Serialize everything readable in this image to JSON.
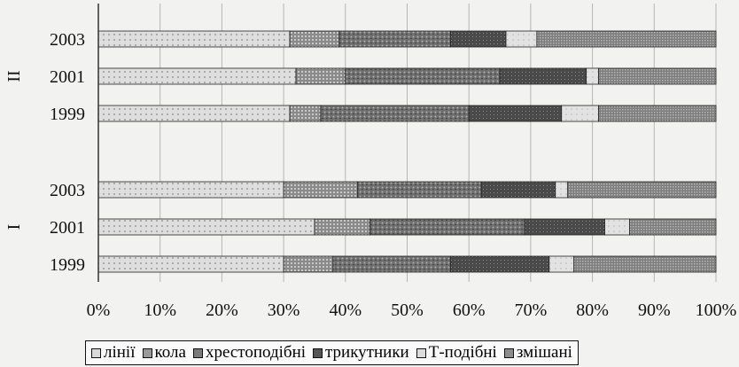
{
  "chart_data": {
    "type": "bar",
    "orientation": "horizontal",
    "stacked": "percent",
    "groups": [
      {
        "label": "II",
        "categories": [
          "2003",
          "2001",
          "1999"
        ]
      },
      {
        "label": "I",
        "categories": [
          "2003",
          "2001",
          "1999"
        ]
      }
    ],
    "categories": [
      "2003",
      "2001",
      "1999",
      "2003",
      "2001",
      "1999"
    ],
    "series": [
      {
        "name": "лінії",
        "values": [
          31,
          32,
          31,
          30,
          35,
          30
        ],
        "color": "#d9d9d9"
      },
      {
        "name": "кола",
        "values": [
          8,
          8,
          5,
          12,
          9,
          8
        ],
        "color": "#9a9a9a"
      },
      {
        "name": "хрестоподібні",
        "values": [
          18,
          25,
          24,
          20,
          25,
          19
        ],
        "color": "#7a7a7a"
      },
      {
        "name": "трикутники",
        "values": [
          9,
          14,
          15,
          12,
          13,
          16
        ],
        "color": "#555555"
      },
      {
        "name": "Т-подібні",
        "values": [
          5,
          2,
          6,
          2,
          4,
          4
        ],
        "color": "#dcdcdc"
      },
      {
        "name": "змішані",
        "values": [
          29,
          19,
          19,
          24,
          14,
          23
        ],
        "color": "#8c8c8c"
      }
    ],
    "xlim": [
      0,
      100
    ],
    "xticks": [
      "0%",
      "10%",
      "20%",
      "30%",
      "40%",
      "50%",
      "60%",
      "70%",
      "80%",
      "90%",
      "100%"
    ],
    "grid": "vertical",
    "legend_position": "bottom"
  }
}
